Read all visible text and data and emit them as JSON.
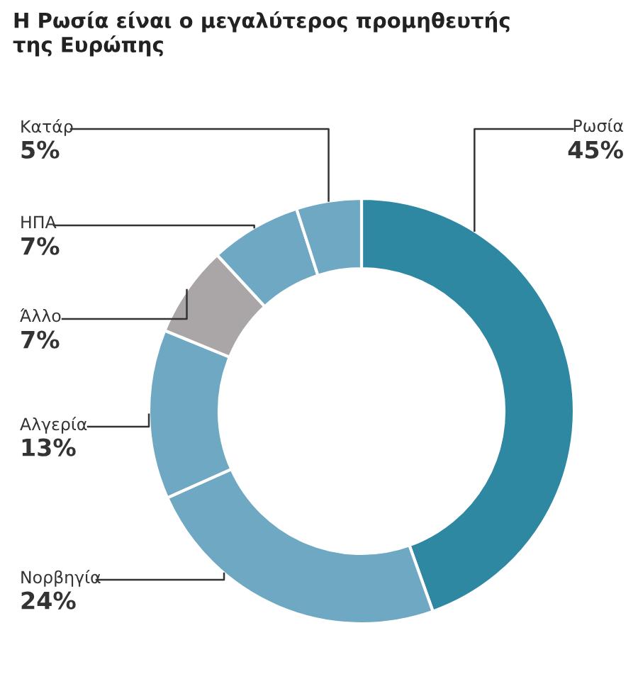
{
  "chart_data": {
    "type": "donut",
    "title": "Η Ρωσία είναι ο μεγαλύτερος προμηθευτής\nτης Ευρώπης",
    "categories": [
      "Ρωσία",
      "Νορβηγία",
      "Αλγερία",
      "Άλλο",
      "ΗΠΑ",
      "Κατάρ"
    ],
    "values": [
      45,
      24,
      13,
      7,
      7,
      5
    ],
    "colors": [
      "#2e88a2",
      "#6ea8c3",
      "#6ea8c3",
      "#aaa5a7",
      "#6ea8c3",
      "#6ea8c3"
    ],
    "value_labels": [
      "45%",
      "24%",
      "13%",
      "7%",
      "7%",
      "5%"
    ]
  }
}
